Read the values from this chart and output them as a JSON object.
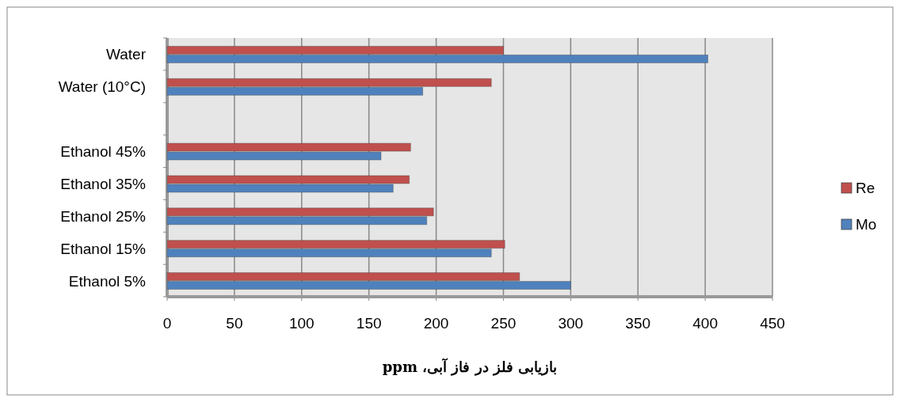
{
  "chart_data": {
    "type": "bar",
    "orientation": "horizontal",
    "xlabel": "بازیابی فلز در فاز آبی، ppm",
    "categories": [
      "Water",
      "Water (10°C)",
      null,
      "Ethanol 45%",
      "Ethanol 35%",
      "Ethanol 25%",
      "Ethanol 15%",
      "Ethanol 5%"
    ],
    "series": [
      {
        "name": "Re",
        "color": "#c0504d",
        "values": [
          250,
          241,
          null,
          181,
          180,
          198,
          251,
          262
        ]
      },
      {
        "name": "Mo",
        "color": "#4f81bd",
        "values": [
          402,
          190,
          null,
          159,
          168,
          193,
          241,
          300
        ]
      }
    ],
    "xlim": [
      0,
      450
    ],
    "xticks": [
      0,
      50,
      100,
      150,
      200,
      250,
      300,
      350,
      400,
      450
    ],
    "grid": "x",
    "legend": "right"
  }
}
